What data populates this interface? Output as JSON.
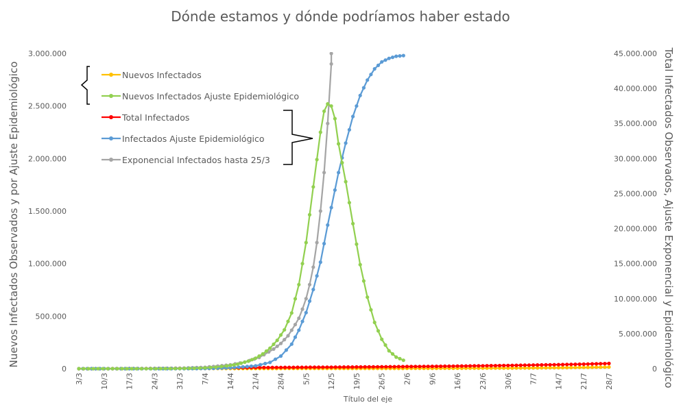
{
  "chart_data": {
    "type": "line",
    "title": "Dónde estamos y dónde podríamos haber estado",
    "xlabel": "Título del eje",
    "ylabel_left": "Nuevos Infectados Observados y por Ajuste Epidemiológico",
    "ylabel_right": "Total Infectados Observados, Ajuste Exponencial y Epidemiológico",
    "x_start": "3/3",
    "x_end": "28/7",
    "x_ticks": [
      "3/3",
      "10/3",
      "17/3",
      "24/3",
      "31/3",
      "7/4",
      "14/4",
      "21/4",
      "28/4",
      "5/5",
      "12/5",
      "19/5",
      "26/5",
      "2/6",
      "9/6",
      "16/6",
      "23/6",
      "30/6",
      "7/7",
      "14/7",
      "21/7",
      "28/7"
    ],
    "ylim_left": [
      0,
      3000000
    ],
    "yticks_left": [
      "0",
      "500.000",
      "1.000.000",
      "1.500.000",
      "2.000.000",
      "2.500.000",
      "3.000.000"
    ],
    "ylim_right": [
      0,
      45000000
    ],
    "yticks_right": [
      "0",
      "5.000.000",
      "10.000.000",
      "15.000.000",
      "20.000.000",
      "25.000.000",
      "30.000.000",
      "35.000.000",
      "40.000.000",
      "45.000.000"
    ],
    "grid": false,
    "legend_position": "top-left",
    "series": [
      {
        "name": "Nuevos Infectados",
        "axis": "left",
        "color": "#FFC000",
        "points": [
          [
            "3/3",
            0
          ],
          [
            "10/3",
            100
          ],
          [
            "17/3",
            1000
          ],
          [
            "24/3",
            1100
          ],
          [
            "31/3",
            1200
          ],
          [
            "7/4",
            1000
          ],
          [
            "14/4",
            1200
          ],
          [
            "21/4",
            1400
          ],
          [
            "28/4",
            1600
          ],
          [
            "5/5",
            1800
          ],
          [
            "12/5",
            2000
          ],
          [
            "19/5",
            2200
          ],
          [
            "26/5",
            2500
          ],
          [
            "2/6",
            3000
          ],
          [
            "9/6",
            3500
          ],
          [
            "16/6",
            4000
          ],
          [
            "23/6",
            5000
          ],
          [
            "30/6",
            6000
          ],
          [
            "7/7",
            7000
          ],
          [
            "14/7",
            9000
          ],
          [
            "21/7",
            12000
          ],
          [
            "28/7",
            15000
          ]
        ]
      },
      {
        "name": "Nuevos Infectados Ajuste Epidemiológico",
        "axis": "left",
        "color": "#92D050",
        "points": [
          [
            "3/3",
            0
          ],
          [
            "7/3",
            0
          ],
          [
            "11/3",
            0
          ],
          [
            "15/3",
            0
          ],
          [
            "19/3",
            0
          ],
          [
            "23/3",
            0
          ],
          [
            "27/3",
            500
          ],
          [
            "31/3",
            1500
          ],
          [
            "4/4",
            4000
          ],
          [
            "7/4",
            8000
          ],
          [
            "10/4",
            15000
          ],
          [
            "13/4",
            26000
          ],
          [
            "15/4",
            36000
          ],
          [
            "17/4",
            52000
          ],
          [
            "19/4",
            72000
          ],
          [
            "21/4",
            100000
          ],
          [
            "23/4",
            140000
          ],
          [
            "25/4",
            195000
          ],
          [
            "27/4",
            270000
          ],
          [
            "29/4",
            370000
          ],
          [
            "1/5",
            530000
          ],
          [
            "3/5",
            800000
          ],
          [
            "5/5",
            1200000
          ],
          [
            "7/5",
            1730000
          ],
          [
            "9/5",
            2250000
          ],
          [
            "10/5",
            2450000
          ],
          [
            "11/5",
            2520000
          ],
          [
            "12/5",
            2500000
          ],
          [
            "13/5",
            2380000
          ],
          [
            "14/5",
            2140000
          ],
          [
            "16/5",
            1780000
          ],
          [
            "18/5",
            1380000
          ],
          [
            "20/5",
            990000
          ],
          [
            "22/5",
            680000
          ],
          [
            "24/5",
            440000
          ],
          [
            "26/5",
            280000
          ],
          [
            "28/5",
            170000
          ],
          [
            "30/5",
            110000
          ],
          [
            "1/6",
            80000
          ]
        ]
      },
      {
        "name": "Total Infectados",
        "axis": "right",
        "color": "#FF0000",
        "points": [
          [
            "3/3",
            0
          ],
          [
            "10/3",
            0
          ],
          [
            "17/3",
            5000
          ],
          [
            "24/3",
            30000
          ],
          [
            "31/3",
            60000
          ],
          [
            "7/4",
            100000
          ],
          [
            "14/4",
            130000
          ],
          [
            "21/4",
            160000
          ],
          [
            "28/4",
            180000
          ],
          [
            "5/5",
            200000
          ],
          [
            "12/5",
            220000
          ],
          [
            "19/5",
            240000
          ],
          [
            "26/5",
            270000
          ],
          [
            "2/6",
            300000
          ],
          [
            "9/6",
            330000
          ],
          [
            "16/6",
            370000
          ],
          [
            "23/6",
            410000
          ],
          [
            "30/6",
            460000
          ],
          [
            "7/7",
            520000
          ],
          [
            "14/7",
            580000
          ],
          [
            "21/7",
            650000
          ],
          [
            "28/7",
            740000
          ]
        ]
      },
      {
        "name": "Infectados Ajuste Epidemiológico",
        "axis": "right",
        "color": "#5B9BD5",
        "points": [
          [
            "3/3",
            0
          ],
          [
            "10/3",
            0
          ],
          [
            "17/3",
            0
          ],
          [
            "24/3",
            0
          ],
          [
            "31/3",
            0
          ],
          [
            "7/4",
            20000
          ],
          [
            "14/4",
            120000
          ],
          [
            "21/4",
            400000
          ],
          [
            "25/4",
            900000
          ],
          [
            "28/4",
            1800000
          ],
          [
            "1/5",
            3500000
          ],
          [
            "3/5",
            5500000
          ],
          [
            "5/5",
            8000000
          ],
          [
            "7/5",
            11300000
          ],
          [
            "9/5",
            15200000
          ],
          [
            "11/5",
            20500000
          ],
          [
            "12/5",
            23000000
          ],
          [
            "14/5",
            28000000
          ],
          [
            "16/5",
            32200000
          ],
          [
            "18/5",
            36000000
          ],
          [
            "20/5",
            39000000
          ],
          [
            "22/5",
            41200000
          ],
          [
            "24/5",
            42800000
          ],
          [
            "26/5",
            43800000
          ],
          [
            "28/5",
            44300000
          ],
          [
            "30/5",
            44600000
          ],
          [
            "1/6",
            44700000
          ]
        ]
      },
      {
        "name": "Exponencial Infectados hasta 25/3",
        "axis": "right",
        "color": "#A5A5A5",
        "points": [
          [
            "3/3",
            0
          ],
          [
            "10/3",
            0
          ],
          [
            "17/3",
            5000
          ],
          [
            "24/3",
            20000
          ],
          [
            "31/3",
            70000
          ],
          [
            "7/4",
            200000
          ],
          [
            "14/4",
            550000
          ],
          [
            "18/4",
            950000
          ],
          [
            "22/4",
            1600000
          ],
          [
            "26/4",
            2800000
          ],
          [
            "28/4",
            3600000
          ],
          [
            "30/4",
            4700000
          ],
          [
            "2/5",
            6300000
          ],
          [
            "3/5",
            7200000
          ],
          [
            "4/5",
            8500000
          ],
          [
            "5/5",
            10000000
          ],
          [
            "6/5",
            12000000
          ],
          [
            "7/5",
            14500000
          ],
          [
            "8/5",
            18000000
          ],
          [
            "9/5",
            22500000
          ],
          [
            "10/5",
            28000000
          ],
          [
            "11/5",
            35000000
          ],
          [
            "12/5",
            43500000
          ],
          [
            "12/5",
            45000000
          ]
        ]
      }
    ],
    "annotations": [
      "bracket",
      "bracket"
    ]
  }
}
